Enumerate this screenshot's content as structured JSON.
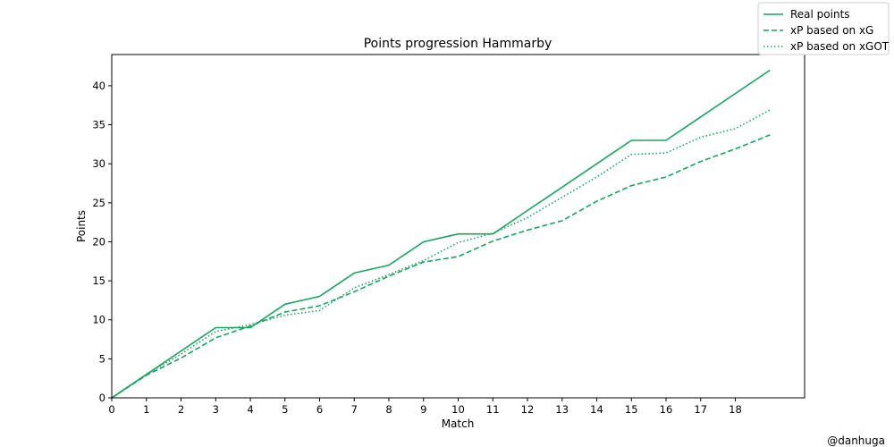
{
  "chart_data": {
    "type": "line",
    "title": "Points progression Hammarby",
    "xlabel": "Match",
    "ylabel": "Points",
    "xlim": [
      0,
      20
    ],
    "ylim": [
      0,
      44
    ],
    "xticks": [
      0,
      1,
      2,
      3,
      4,
      5,
      6,
      7,
      8,
      9,
      10,
      11,
      12,
      13,
      14,
      15,
      16,
      17,
      18
    ],
    "yticks": [
      0,
      5,
      10,
      15,
      20,
      25,
      30,
      35,
      40
    ],
    "grid": false,
    "legend_position": "top-right",
    "line_color": "#1aa35f",
    "x": [
      0,
      1,
      2,
      3,
      4,
      5,
      6,
      7,
      8,
      9,
      10,
      11,
      12,
      13,
      14,
      15,
      16,
      17,
      18,
      19
    ],
    "series": [
      {
        "name": "Real points",
        "style": "solid",
        "values": [
          0,
          3,
          6,
          9,
          9,
          12,
          13,
          16,
          17,
          20,
          21,
          21,
          24,
          27,
          30,
          33,
          33,
          36,
          39,
          42
        ]
      },
      {
        "name": "xP based on xG",
        "style": "dashed",
        "values": [
          0,
          2.9,
          5.1,
          7.7,
          9.2,
          11.0,
          11.8,
          13.6,
          15.6,
          17.4,
          18.1,
          20.1,
          21.5,
          22.7,
          25.2,
          27.2,
          28.3,
          30.3,
          31.9,
          33.7
        ]
      },
      {
        "name": "xP based on xGOT",
        "style": "dotted",
        "values": [
          0,
          3.0,
          5.6,
          8.5,
          9.4,
          10.6,
          11.2,
          14.1,
          15.8,
          17.6,
          19.9,
          21.1,
          23.1,
          25.7,
          28.3,
          31.2,
          31.4,
          33.4,
          34.5,
          36.9
        ]
      }
    ],
    "credit": "@danhuga"
  }
}
